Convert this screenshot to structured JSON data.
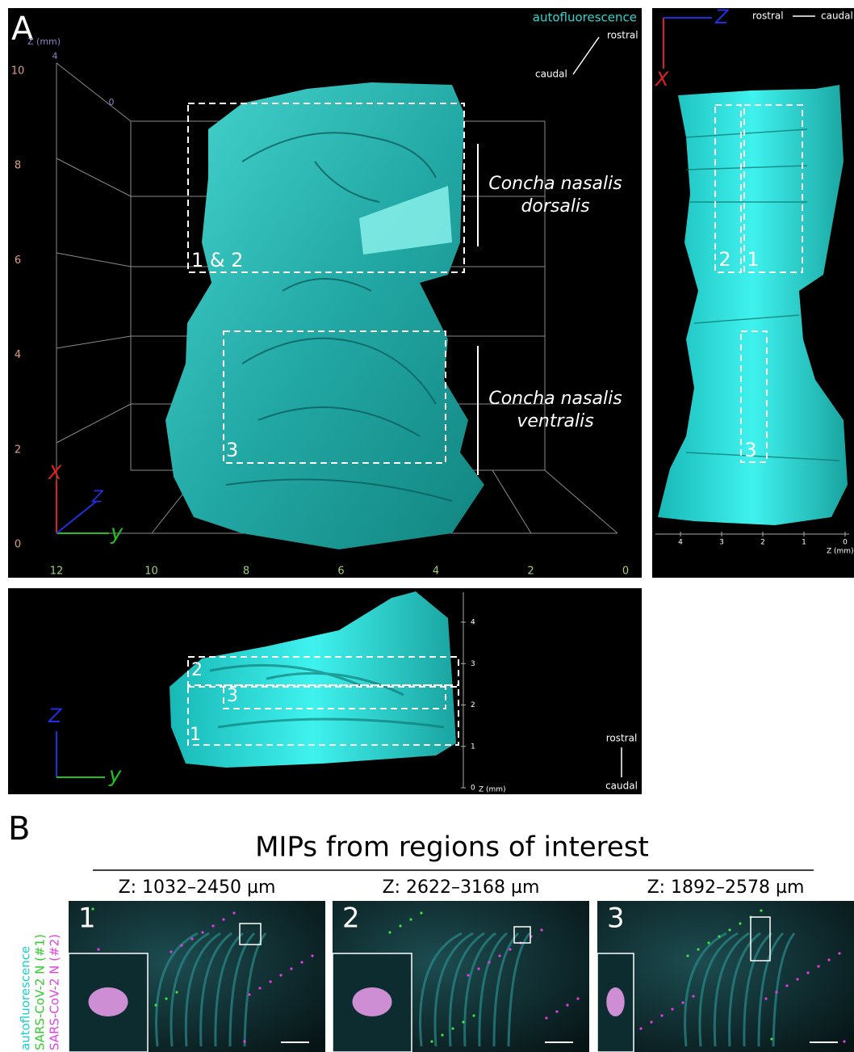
{
  "panel_a": {
    "label": "A",
    "channel": "autofluorescence",
    "rostral": "rostral",
    "caudal": "caudal",
    "z_axis_title": "Z (mm)",
    "x_ticks": [
      "10",
      "8",
      "6",
      "4",
      "2",
      "0"
    ],
    "z_ticks": [
      "4",
      "0"
    ],
    "y_ticks": [
      "12",
      "10",
      "8",
      "6",
      "4",
      "2",
      "0"
    ],
    "axis_x": "X",
    "axis_y": "y",
    "axis_z": "Z",
    "regions": [
      {
        "label": "1 & 2",
        "name_line1": "Concha nasalis",
        "name_line2": "dorsalis"
      },
      {
        "label": "3",
        "name_line1": "Concha nasalis",
        "name_line2": "ventralis"
      }
    ]
  },
  "side_view": {
    "axis_z": "Z",
    "axis_x": "X",
    "rostral": "rostral",
    "caudal": "caudal",
    "region_labels": [
      "2",
      "1",
      "3"
    ],
    "z_ticks": [
      "4",
      "3",
      "2",
      "1",
      "0"
    ],
    "z_axis_title": "Z (mm)"
  },
  "top_view": {
    "region_labels": [
      "2",
      "3",
      "1"
    ],
    "z_ticks": [
      "4",
      "3",
      "2",
      "1",
      "0"
    ],
    "z_axis_title": "Z (mm)",
    "axis_z": "Z",
    "axis_y": "y",
    "rostral": "rostral",
    "caudal": "caudal"
  },
  "panel_b": {
    "label": "B",
    "title": "MIPs from regions of interest",
    "legend": [
      "autofluorescence",
      "SARS-CoV-2 N (#1)",
      "SARS-CoV-2 N (#2)"
    ],
    "panels": [
      {
        "number": "1",
        "header": "Z: 1032–2450 µm"
      },
      {
        "number": "2",
        "header": "Z: 2622–3168 µm"
      },
      {
        "number": "3",
        "header": "Z: 1892–2578 µm"
      }
    ]
  }
}
